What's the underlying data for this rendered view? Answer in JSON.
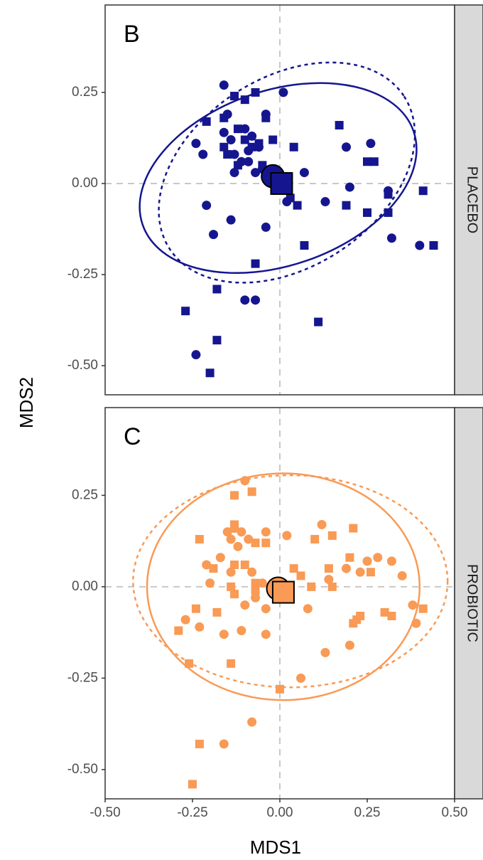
{
  "chart_data": {
    "type": "scatter",
    "xlabel": "MDS1",
    "ylabel": "MDS2",
    "xlim": [
      -0.5,
      0.5
    ],
    "ylim": [
      -0.58,
      0.49
    ],
    "x_ticks": [
      -0.5,
      -0.25,
      0.0,
      0.25,
      0.5
    ],
    "x_tick_labels": [
      "-0.50",
      "-0.25",
      "0.00",
      "0.25",
      "0.50"
    ],
    "y_ticks": [
      -0.5,
      -0.25,
      0.0,
      0.25
    ],
    "y_tick_labels": [
      "-0.50",
      "-0.25",
      "0.00",
      "0.25"
    ],
    "grid": "dashed zero lines only",
    "facet_strip_position": "right",
    "panels": [
      {
        "letter": "B",
        "strip": "PLACEBO",
        "color": "#15168f",
        "circles": [
          [
            -0.16,
            0.27
          ],
          [
            -0.15,
            0.19
          ],
          [
            -0.24,
            0.11
          ],
          [
            -0.22,
            0.08
          ],
          [
            -0.16,
            0.14
          ],
          [
            -0.14,
            0.12
          ],
          [
            -0.1,
            0.15
          ],
          [
            -0.08,
            0.13
          ],
          [
            -0.06,
            0.1
          ],
          [
            -0.09,
            0.09
          ],
          [
            -0.13,
            0.08
          ],
          [
            -0.11,
            0.06
          ],
          [
            -0.09,
            0.06
          ],
          [
            -0.13,
            0.03
          ],
          [
            -0.07,
            0.03
          ],
          [
            -0.05,
            0.04
          ],
          [
            -0.03,
            0.02
          ],
          [
            -0.04,
            0.19
          ],
          [
            0.01,
            0.25
          ],
          [
            0.07,
            0.03
          ],
          [
            0.19,
            0.1
          ],
          [
            0.26,
            0.11
          ],
          [
            0.2,
            -0.01
          ],
          [
            0.31,
            -0.02
          ],
          [
            0.13,
            -0.05
          ],
          [
            0.02,
            -0.05
          ],
          [
            0.32,
            -0.15
          ],
          [
            0.4,
            -0.17
          ],
          [
            -0.21,
            -0.06
          ],
          [
            -0.19,
            -0.14
          ],
          [
            -0.14,
            -0.1
          ],
          [
            -0.04,
            -0.12
          ],
          [
            -0.1,
            -0.32
          ],
          [
            -0.07,
            -0.32
          ],
          [
            -0.24,
            -0.47
          ]
        ],
        "squares": [
          [
            -0.13,
            0.24
          ],
          [
            -0.1,
            0.23
          ],
          [
            -0.07,
            0.25
          ],
          [
            -0.16,
            0.18
          ],
          [
            -0.21,
            0.17
          ],
          [
            -0.12,
            0.15
          ],
          [
            -0.04,
            0.18
          ],
          [
            -0.16,
            0.1
          ],
          [
            -0.1,
            0.12
          ],
          [
            -0.08,
            0.1
          ],
          [
            -0.06,
            0.11
          ],
          [
            -0.15,
            0.08
          ],
          [
            -0.12,
            0.05
          ],
          [
            -0.02,
            0.12
          ],
          [
            0.04,
            0.1
          ],
          [
            -0.05,
            0.05
          ],
          [
            -0.01,
            0.0
          ],
          [
            0.17,
            0.16
          ],
          [
            0.25,
            0.06
          ],
          [
            0.27,
            0.06
          ],
          [
            0.31,
            -0.03
          ],
          [
            0.41,
            -0.02
          ],
          [
            0.03,
            -0.04
          ],
          [
            0.05,
            -0.06
          ],
          [
            0.19,
            -0.06
          ],
          [
            0.25,
            -0.08
          ],
          [
            0.31,
            -0.08
          ],
          [
            0.44,
            -0.17
          ],
          [
            0.07,
            -0.17
          ],
          [
            -0.07,
            -0.22
          ],
          [
            -0.18,
            -0.29
          ],
          [
            -0.27,
            -0.35
          ],
          [
            0.11,
            -0.38
          ],
          [
            -0.18,
            -0.43
          ],
          [
            -0.2,
            -0.52
          ]
        ],
        "centroid_circle": [
          -0.02,
          0.02
        ],
        "centroid_square": [
          0.005,
          0.0
        ],
        "ellipse_solid": {
          "center": [
            -0.005,
            0.015
          ],
          "rx": 0.41,
          "ry": 0.24,
          "angle_deg": -19
        },
        "ellipse_dashed": {
          "center": [
            0.02,
            0.03
          ],
          "rx": 0.4,
          "ry": 0.26,
          "angle_deg": -33
        }
      },
      {
        "letter": "C",
        "strip": "PROBIOTIC",
        "color": "#f99a55",
        "circles": [
          [
            -0.1,
            0.29
          ],
          [
            -0.15,
            0.15
          ],
          [
            -0.13,
            0.16
          ],
          [
            -0.11,
            0.15
          ],
          [
            -0.09,
            0.13
          ],
          [
            -0.04,
            0.15
          ],
          [
            0.02,
            0.14
          ],
          [
            0.12,
            0.17
          ],
          [
            -0.14,
            0.13
          ],
          [
            -0.12,
            0.11
          ],
          [
            -0.17,
            0.08
          ],
          [
            -0.21,
            0.06
          ],
          [
            -0.2,
            0.01
          ],
          [
            -0.14,
            0.04
          ],
          [
            -0.08,
            0.04
          ],
          [
            -0.05,
            0.01
          ],
          [
            -0.07,
            -0.03
          ],
          [
            -0.1,
            -0.05
          ],
          [
            -0.04,
            -0.06
          ],
          [
            0.08,
            -0.06
          ],
          [
            0.14,
            0.02
          ],
          [
            0.19,
            0.05
          ],
          [
            0.23,
            0.04
          ],
          [
            0.25,
            0.07
          ],
          [
            0.28,
            0.08
          ],
          [
            0.32,
            0.07
          ],
          [
            0.38,
            -0.05
          ],
          [
            0.35,
            0.03
          ],
          [
            0.39,
            -0.1
          ],
          [
            -0.27,
            -0.09
          ],
          [
            -0.23,
            -0.11
          ],
          [
            -0.16,
            -0.13
          ],
          [
            -0.11,
            -0.12
          ],
          [
            -0.04,
            -0.13
          ],
          [
            0.2,
            -0.16
          ],
          [
            0.13,
            -0.18
          ],
          [
            0.06,
            -0.25
          ],
          [
            -0.08,
            -0.37
          ],
          [
            -0.16,
            -0.43
          ]
        ],
        "squares": [
          [
            -0.13,
            0.25
          ],
          [
            -0.08,
            0.26
          ],
          [
            -0.13,
            0.17
          ],
          [
            -0.07,
            0.12
          ],
          [
            -0.04,
            0.12
          ],
          [
            0.1,
            0.13
          ],
          [
            0.15,
            0.14
          ],
          [
            0.21,
            0.16
          ],
          [
            -0.23,
            0.13
          ],
          [
            -0.13,
            0.06
          ],
          [
            -0.1,
            0.06
          ],
          [
            -0.07,
            0.01
          ],
          [
            0.04,
            0.05
          ],
          [
            0.14,
            0.05
          ],
          [
            0.2,
            0.08
          ],
          [
            0.26,
            0.04
          ],
          [
            -0.19,
            0.05
          ],
          [
            -0.14,
            0.0
          ],
          [
            -0.13,
            -0.02
          ],
          [
            -0.07,
            -0.01
          ],
          [
            0.09,
            0.0
          ],
          [
            0.15,
            0.0
          ],
          [
            0.06,
            0.03
          ],
          [
            0.3,
            -0.07
          ],
          [
            0.32,
            -0.08
          ],
          [
            0.41,
            -0.06
          ],
          [
            0.22,
            -0.09
          ],
          [
            0.23,
            -0.08
          ],
          [
            0.21,
            -0.1
          ],
          [
            -0.18,
            -0.07
          ],
          [
            -0.24,
            -0.06
          ],
          [
            -0.29,
            -0.12
          ],
          [
            -0.26,
            -0.21
          ],
          [
            -0.14,
            -0.21
          ],
          [
            0.0,
            -0.28
          ],
          [
            -0.23,
            -0.43
          ],
          [
            -0.25,
            -0.54
          ]
        ],
        "centroid_circle": [
          -0.005,
          -0.005
        ],
        "centroid_square": [
          0.01,
          -0.015
        ],
        "ellipse_solid": {
          "center": [
            0.01,
            0.0
          ],
          "rx": 0.39,
          "ry": 0.31,
          "angle_deg": 0
        },
        "ellipse_dashed": {
          "center": [
            0.03,
            0.015
          ],
          "rx": 0.45,
          "ry": 0.29,
          "angle_deg": 0
        }
      }
    ]
  }
}
